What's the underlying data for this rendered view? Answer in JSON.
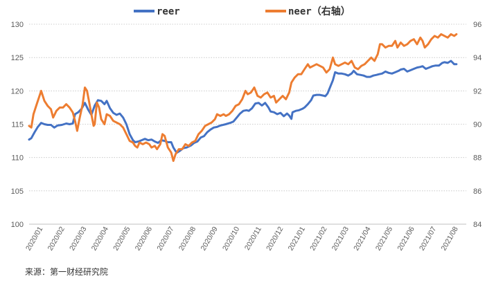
{
  "chart_data": {
    "type": "line",
    "title": "",
    "source": "来源：第一财经研究院",
    "legend_position": "top-center",
    "grid": "horizontal-dotted",
    "categories": [
      "2020/01",
      "2020/02",
      "2020/03",
      "2020/04",
      "2020/05",
      "2020/06",
      "2020/07",
      "2020/08",
      "2020/09",
      "2020/10",
      "2020/11",
      "2020/12",
      "2021/01",
      "2021/02",
      "2021/03",
      "2021/04",
      "2021/05",
      "2021/06",
      "2021/07",
      "2021/08"
    ],
    "left_axis": {
      "ylim": [
        100,
        130
      ],
      "ticks": [
        "100",
        "105",
        "110",
        "115",
        "120",
        "125",
        "130"
      ]
    },
    "right_axis": {
      "ylim": [
        84,
        96
      ],
      "ticks": [
        "84",
        "86",
        "88",
        "90",
        "92",
        "94",
        "96"
      ]
    },
    "series": [
      {
        "name": "reer",
        "axis": "left",
        "color": "#4472C4",
        "points": [
          [
            0,
            112.7
          ],
          [
            0.1,
            112.9
          ],
          [
            0.25,
            113.8
          ],
          [
            0.4,
            114.6
          ],
          [
            0.55,
            115.2
          ],
          [
            0.7,
            115.0
          ],
          [
            0.85,
            114.9
          ],
          [
            1.0,
            114.9
          ],
          [
            1.15,
            114.5
          ],
          [
            1.3,
            114.8
          ],
          [
            1.5,
            114.9
          ],
          [
            1.7,
            115.1
          ],
          [
            1.85,
            115.0
          ],
          [
            2.0,
            115.1
          ],
          [
            2.1,
            116.5
          ],
          [
            2.25,
            116.8
          ],
          [
            2.4,
            117.3
          ],
          [
            2.55,
            118.2
          ],
          [
            2.7,
            117.2
          ],
          [
            2.85,
            116.4
          ],
          [
            3.0,
            117.8
          ],
          [
            3.15,
            118.6
          ],
          [
            3.3,
            118.5
          ],
          [
            3.45,
            118.0
          ],
          [
            3.55,
            118.5
          ],
          [
            3.7,
            117.4
          ],
          [
            3.85,
            116.7
          ],
          [
            4.0,
            116.4
          ],
          [
            4.15,
            116.6
          ],
          [
            4.3,
            116.0
          ],
          [
            4.45,
            115.0
          ],
          [
            4.6,
            113.5
          ],
          [
            4.75,
            112.6
          ],
          [
            4.85,
            112.3
          ],
          [
            5.0,
            112.4
          ],
          [
            5.15,
            112.6
          ],
          [
            5.3,
            112.8
          ],
          [
            5.45,
            112.6
          ],
          [
            5.6,
            112.7
          ],
          [
            5.75,
            112.4
          ],
          [
            5.9,
            112.2
          ],
          [
            6.05,
            112.6
          ],
          [
            6.2,
            112.5
          ],
          [
            6.35,
            112.3
          ],
          [
            6.5,
            112.3
          ],
          [
            6.6,
            111.5
          ],
          [
            6.75,
            110.7
          ],
          [
            6.9,
            111.0
          ],
          [
            7.05,
            111.4
          ],
          [
            7.2,
            111.5
          ],
          [
            7.4,
            111.8
          ],
          [
            7.55,
            112.2
          ],
          [
            7.7,
            112.4
          ],
          [
            7.85,
            113.0
          ],
          [
            8.0,
            113.2
          ],
          [
            8.15,
            113.8
          ],
          [
            8.3,
            114.2
          ],
          [
            8.45,
            114.5
          ],
          [
            8.6,
            114.6
          ],
          [
            8.75,
            114.8
          ],
          [
            9.0,
            115.0
          ],
          [
            9.2,
            115.2
          ],
          [
            9.35,
            115.4
          ],
          [
            9.5,
            116.0
          ],
          [
            9.65,
            116.6
          ],
          [
            9.8,
            117.0
          ],
          [
            9.95,
            117.1
          ],
          [
            10.05,
            117.0
          ],
          [
            10.2,
            117.4
          ],
          [
            10.35,
            118.1
          ],
          [
            10.5,
            118.2
          ],
          [
            10.65,
            117.8
          ],
          [
            10.8,
            118.2
          ],
          [
            10.95,
            117.5
          ],
          [
            11.05,
            116.9
          ],
          [
            11.2,
            116.8
          ],
          [
            11.35,
            116.5
          ],
          [
            11.5,
            116.7
          ],
          [
            11.65,
            116.2
          ],
          [
            11.8,
            116.6
          ],
          [
            11.9,
            116.3
          ],
          [
            12.0,
            115.8
          ],
          [
            12.05,
            116.8
          ],
          [
            12.2,
            117.0
          ],
          [
            12.35,
            117.1
          ],
          [
            12.5,
            117.3
          ],
          [
            12.6,
            117.5
          ],
          [
            12.75,
            118.0
          ],
          [
            12.9,
            118.6
          ],
          [
            13.0,
            119.3
          ],
          [
            13.15,
            119.4
          ],
          [
            13.3,
            119.4
          ],
          [
            13.45,
            119.3
          ],
          [
            13.55,
            119.2
          ],
          [
            13.65,
            119.6
          ],
          [
            13.8,
            120.8
          ],
          [
            13.9,
            121.6
          ],
          [
            14.0,
            122.8
          ],
          [
            14.15,
            122.6
          ],
          [
            14.3,
            122.6
          ],
          [
            14.45,
            122.5
          ],
          [
            14.6,
            122.3
          ],
          [
            14.75,
            122.6
          ],
          [
            14.85,
            123.0
          ],
          [
            15.0,
            122.5
          ],
          [
            15.15,
            122.4
          ],
          [
            15.3,
            122.3
          ],
          [
            15.45,
            122.1
          ],
          [
            15.6,
            122.1
          ],
          [
            15.75,
            122.3
          ],
          [
            15.9,
            122.4
          ],
          [
            16.0,
            122.5
          ],
          [
            16.15,
            122.6
          ],
          [
            16.3,
            122.9
          ],
          [
            16.45,
            122.7
          ],
          [
            16.6,
            122.6
          ],
          [
            16.75,
            122.8
          ],
          [
            16.9,
            123.0
          ],
          [
            17.0,
            123.2
          ],
          [
            17.15,
            123.3
          ],
          [
            17.3,
            122.9
          ],
          [
            17.45,
            123.1
          ],
          [
            17.6,
            123.3
          ],
          [
            17.75,
            123.5
          ],
          [
            17.9,
            123.6
          ],
          [
            18.0,
            123.7
          ],
          [
            18.15,
            123.3
          ],
          [
            18.3,
            123.5
          ],
          [
            18.45,
            123.7
          ],
          [
            18.6,
            123.8
          ],
          [
            18.75,
            123.8
          ],
          [
            18.9,
            124.2
          ],
          [
            19.0,
            124.3
          ],
          [
            19.15,
            124.2
          ],
          [
            19.3,
            124.5
          ],
          [
            19.45,
            124.0
          ],
          [
            19.55,
            124.0
          ]
        ]
      },
      {
        "name": "neer（右轴）",
        "axis": "right",
        "color": "#ED7D31",
        "points": [
          [
            0,
            89.9
          ],
          [
            0.1,
            89.8
          ],
          [
            0.2,
            90.6
          ],
          [
            0.35,
            91.2
          ],
          [
            0.5,
            91.8
          ],
          [
            0.55,
            92.0
          ],
          [
            0.7,
            91.4
          ],
          [
            0.85,
            91.1
          ],
          [
            1.0,
            90.9
          ],
          [
            1.1,
            90.4
          ],
          [
            1.25,
            90.8
          ],
          [
            1.4,
            91.0
          ],
          [
            1.55,
            91.0
          ],
          [
            1.7,
            91.2
          ],
          [
            1.85,
            91.0
          ],
          [
            2.0,
            90.7
          ],
          [
            2.1,
            90.2
          ],
          [
            2.2,
            89.6
          ],
          [
            2.3,
            90.3
          ],
          [
            2.45,
            91.2
          ],
          [
            2.55,
            92.2
          ],
          [
            2.65,
            92.0
          ],
          [
            2.75,
            91.3
          ],
          [
            2.85,
            90.6
          ],
          [
            2.95,
            89.9
          ],
          [
            3.0,
            90.0
          ],
          [
            3.1,
            91.3
          ],
          [
            3.2,
            91.0
          ],
          [
            3.3,
            90.3
          ],
          [
            3.45,
            90.0
          ],
          [
            3.55,
            90.6
          ],
          [
            3.7,
            90.5
          ],
          [
            3.85,
            90.2
          ],
          [
            4.0,
            90.1
          ],
          [
            4.15,
            90.0
          ],
          [
            4.3,
            89.8
          ],
          [
            4.45,
            89.4
          ],
          [
            4.6,
            89.0
          ],
          [
            4.75,
            88.9
          ],
          [
            4.85,
            88.7
          ],
          [
            4.95,
            88.6
          ],
          [
            5.05,
            88.9
          ],
          [
            5.2,
            88.8
          ],
          [
            5.35,
            88.9
          ],
          [
            5.5,
            88.8
          ],
          [
            5.6,
            88.6
          ],
          [
            5.75,
            88.7
          ],
          [
            5.85,
            88.5
          ],
          [
            6.0,
            88.8
          ],
          [
            6.1,
            89.4
          ],
          [
            6.2,
            89.3
          ],
          [
            6.35,
            88.6
          ],
          [
            6.5,
            88.3
          ],
          [
            6.6,
            87.8
          ],
          [
            6.7,
            88.2
          ],
          [
            6.85,
            88.5
          ],
          [
            7.0,
            88.5
          ],
          [
            7.15,
            88.8
          ],
          [
            7.3,
            88.7
          ],
          [
            7.45,
            88.9
          ],
          [
            7.6,
            89.0
          ],
          [
            7.75,
            89.4
          ],
          [
            7.9,
            89.6
          ],
          [
            8.05,
            89.9
          ],
          [
            8.2,
            90.0
          ],
          [
            8.35,
            90.1
          ],
          [
            8.5,
            90.3
          ],
          [
            8.6,
            90.6
          ],
          [
            8.75,
            90.5
          ],
          [
            8.9,
            90.6
          ],
          [
            9.0,
            90.5
          ],
          [
            9.15,
            90.6
          ],
          [
            9.3,
            90.8
          ],
          [
            9.45,
            91.1
          ],
          [
            9.6,
            91.2
          ],
          [
            9.75,
            91.5
          ],
          [
            9.9,
            92.0
          ],
          [
            10.0,
            91.8
          ],
          [
            10.15,
            91.9
          ],
          [
            10.3,
            92.2
          ],
          [
            10.45,
            91.7
          ],
          [
            10.6,
            91.6
          ],
          [
            10.75,
            91.8
          ],
          [
            10.9,
            91.9
          ],
          [
            11.05,
            91.6
          ],
          [
            11.2,
            91.7
          ],
          [
            11.3,
            91.3
          ],
          [
            11.45,
            91.5
          ],
          [
            11.6,
            91.7
          ],
          [
            11.75,
            91.5
          ],
          [
            11.9,
            91.9
          ],
          [
            12.0,
            92.5
          ],
          [
            12.15,
            92.8
          ],
          [
            12.3,
            93.0
          ],
          [
            12.45,
            93.0
          ],
          [
            12.6,
            93.3
          ],
          [
            12.75,
            93.6
          ],
          [
            12.85,
            93.4
          ],
          [
            13.0,
            93.5
          ],
          [
            13.15,
            93.6
          ],
          [
            13.3,
            93.5
          ],
          [
            13.45,
            93.4
          ],
          [
            13.6,
            93.1
          ],
          [
            13.75,
            93.3
          ],
          [
            13.9,
            94.0
          ],
          [
            14.0,
            93.6
          ],
          [
            14.15,
            93.5
          ],
          [
            14.3,
            93.6
          ],
          [
            14.45,
            93.7
          ],
          [
            14.6,
            93.6
          ],
          [
            14.75,
            93.8
          ],
          [
            14.9,
            93.4
          ],
          [
            15.05,
            93.3
          ],
          [
            15.2,
            93.5
          ],
          [
            15.35,
            93.6
          ],
          [
            15.5,
            93.8
          ],
          [
            15.65,
            94.0
          ],
          [
            15.8,
            93.8
          ],
          [
            15.95,
            94.2
          ],
          [
            16.05,
            94.8
          ],
          [
            16.15,
            94.8
          ],
          [
            16.3,
            94.6
          ],
          [
            16.45,
            94.7
          ],
          [
            16.6,
            94.7
          ],
          [
            16.75,
            95.0
          ],
          [
            16.85,
            94.6
          ],
          [
            17.0,
            94.9
          ],
          [
            17.15,
            94.7
          ],
          [
            17.3,
            94.8
          ],
          [
            17.45,
            95.0
          ],
          [
            17.6,
            95.1
          ],
          [
            17.75,
            94.8
          ],
          [
            17.9,
            95.2
          ],
          [
            18.0,
            95.0
          ],
          [
            18.1,
            94.6
          ],
          [
            18.25,
            94.8
          ],
          [
            18.4,
            95.1
          ],
          [
            18.55,
            95.3
          ],
          [
            18.7,
            95.2
          ],
          [
            18.85,
            95.4
          ],
          [
            19.0,
            95.3
          ],
          [
            19.15,
            95.2
          ],
          [
            19.3,
            95.4
          ],
          [
            19.45,
            95.3
          ],
          [
            19.55,
            95.4
          ]
        ]
      }
    ]
  }
}
